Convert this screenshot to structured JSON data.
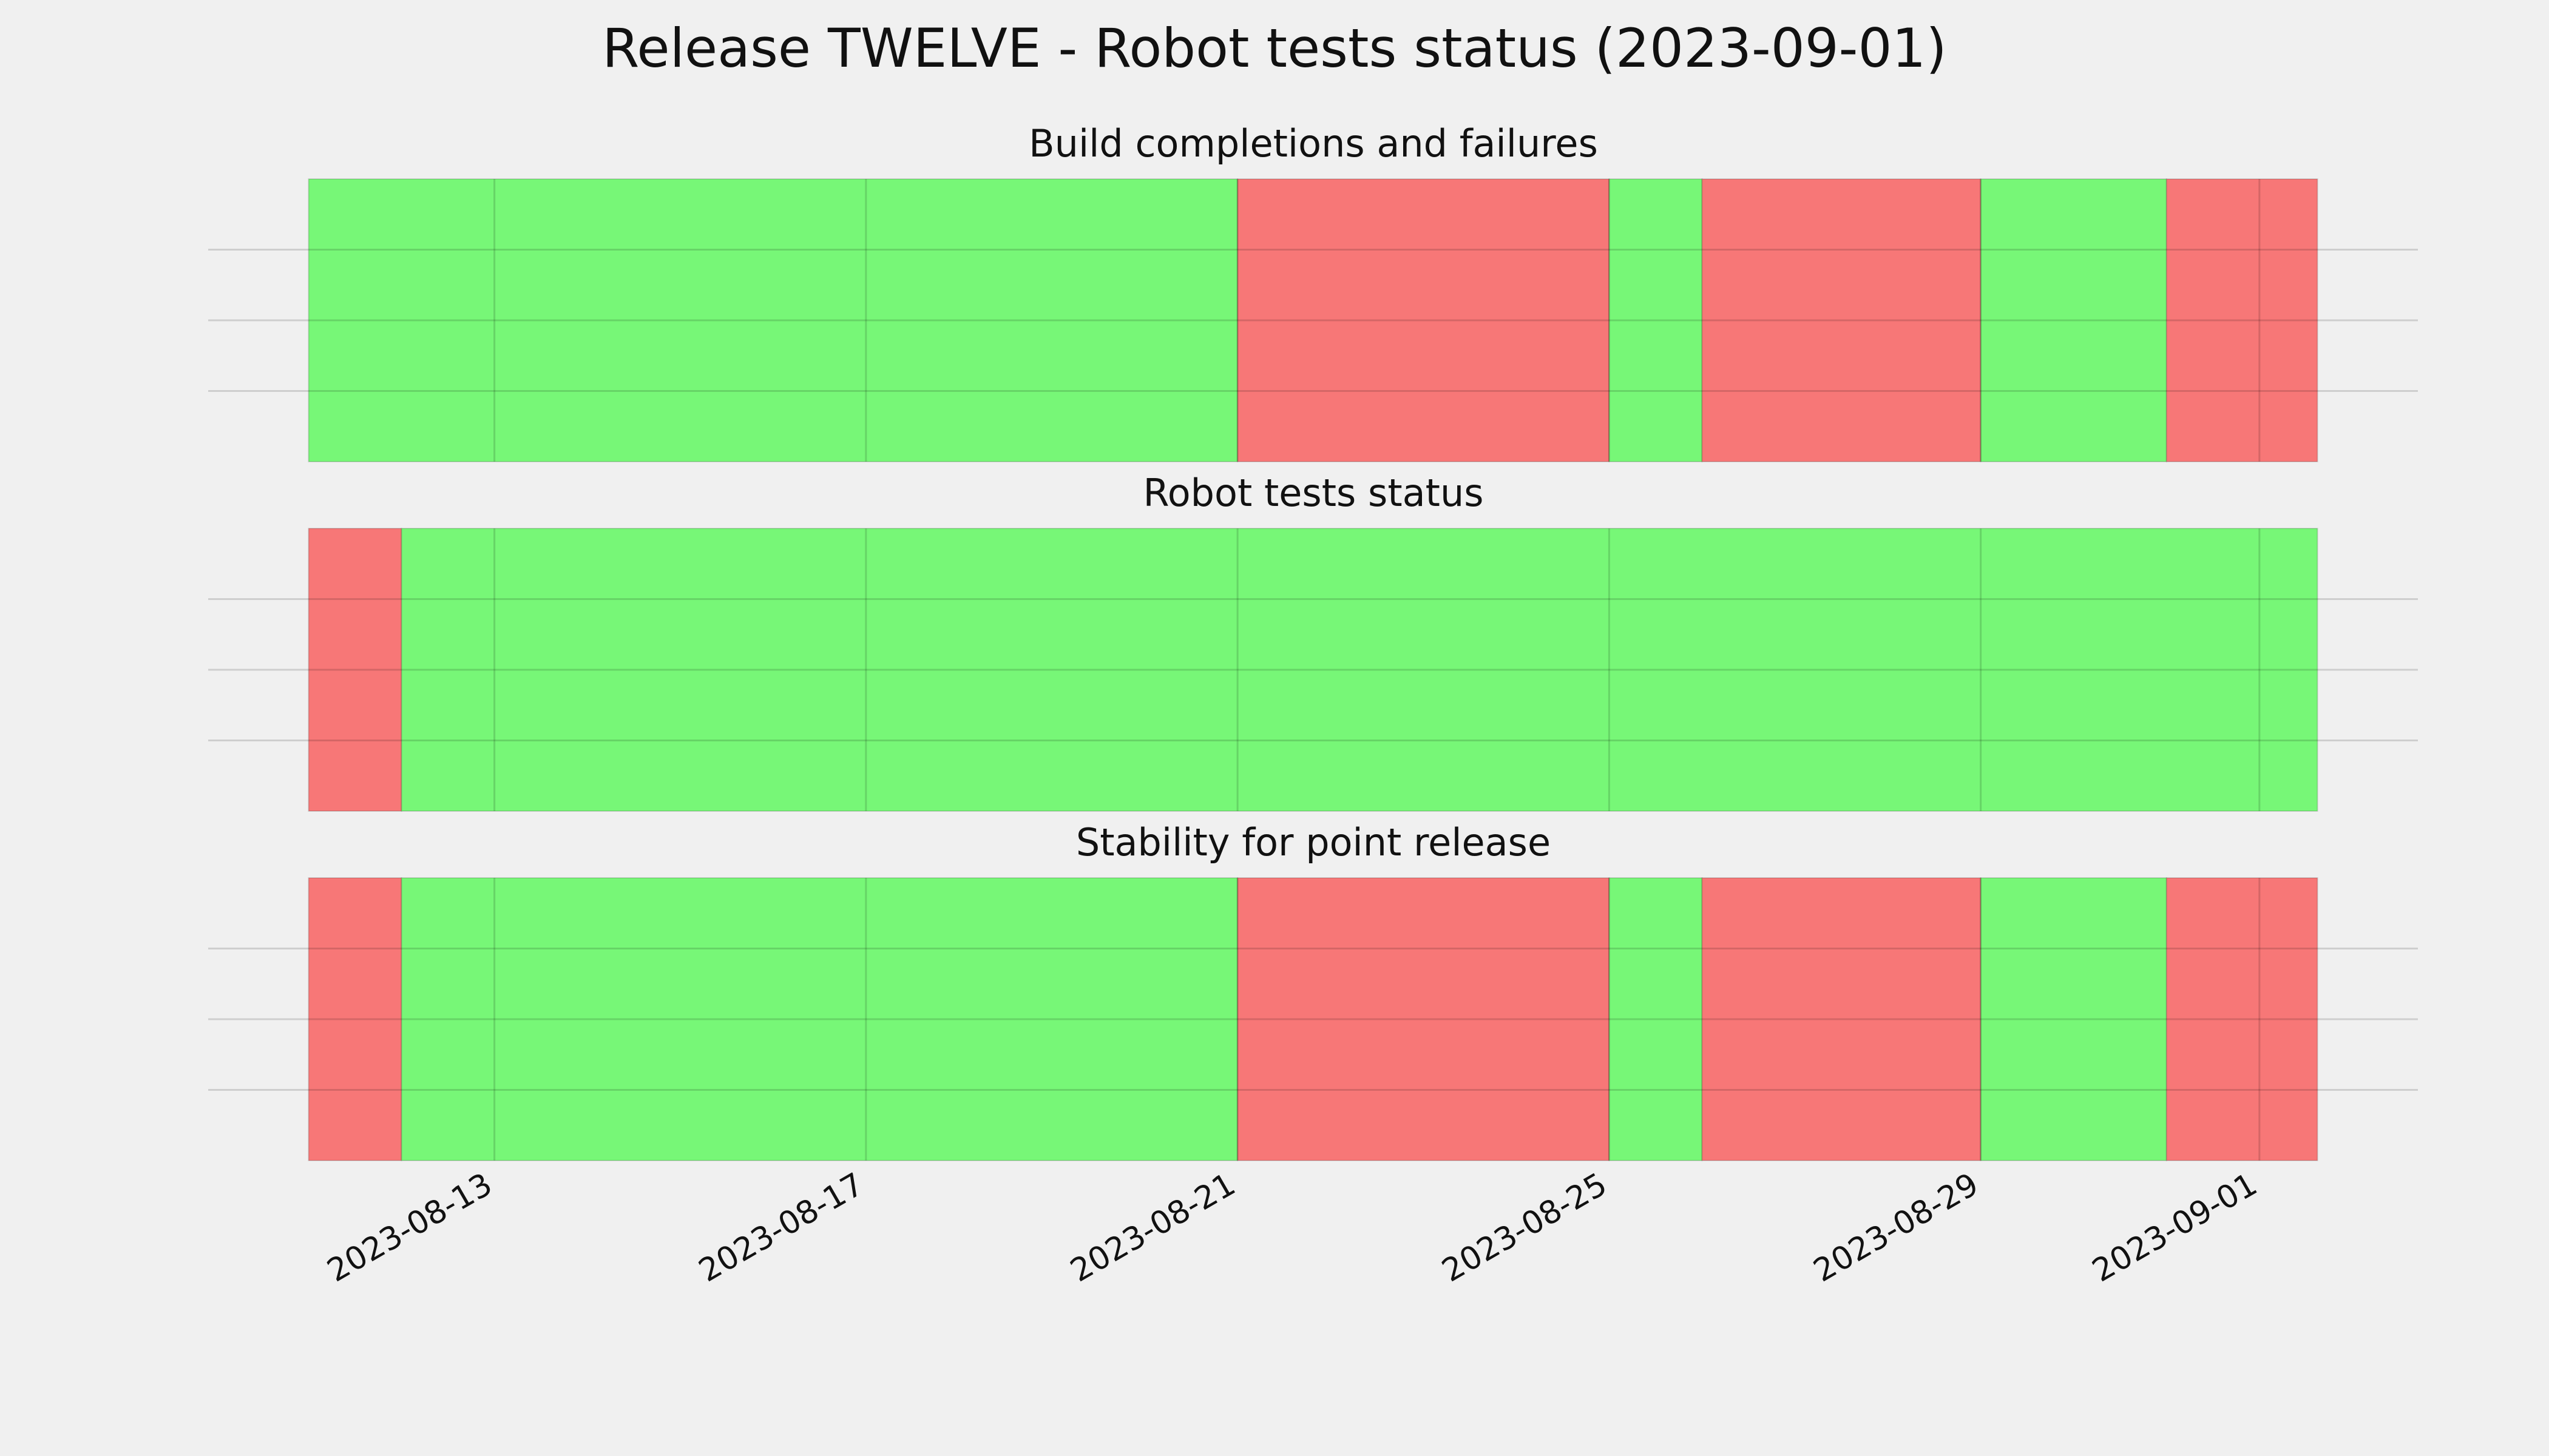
{
  "chart_data": {
    "type": "timeline",
    "title": "Release TWELVE - Robot tests status (2023-09-01)",
    "xticks": [
      "2023-08-13",
      "2023-08-17",
      "2023-08-21",
      "2023-08-25",
      "2023-08-29",
      "2023-09-01"
    ],
    "grid": true,
    "panels": [
      {
        "title": "Build completions and failures",
        "segments": [
          {
            "start": "2023-08-11",
            "end": "2023-08-21",
            "color": "#77f777"
          },
          {
            "start": "2023-08-21",
            "end": "2023-08-25",
            "color": "#f77777"
          },
          {
            "start": "2023-08-25",
            "end": "2023-08-26",
            "color": "#77f777"
          },
          {
            "start": "2023-08-26",
            "end": "2023-08-29",
            "color": "#f77777"
          },
          {
            "start": "2023-08-29",
            "end": "2023-08-31",
            "color": "#77f777"
          },
          {
            "start": "2023-08-31",
            "end": "2023-09-01T15:00",
            "color": "#f77777"
          }
        ]
      },
      {
        "title": "Robot tests status",
        "segments": [
          {
            "start": "2023-08-11",
            "end": "2023-08-12",
            "color": "#f77777"
          },
          {
            "start": "2023-08-12",
            "end": "2023-09-01T15:00",
            "color": "#77f777"
          }
        ]
      },
      {
        "title": "Stability for point release",
        "segments": [
          {
            "start": "2023-08-11",
            "end": "2023-08-12",
            "color": "#f77777"
          },
          {
            "start": "2023-08-12",
            "end": "2023-08-21",
            "color": "#77f777"
          },
          {
            "start": "2023-08-21",
            "end": "2023-08-25",
            "color": "#f77777"
          },
          {
            "start": "2023-08-25",
            "end": "2023-08-26",
            "color": "#77f777"
          },
          {
            "start": "2023-08-26",
            "end": "2023-08-29",
            "color": "#f77777"
          },
          {
            "start": "2023-08-29",
            "end": "2023-08-31",
            "color": "#77f777"
          },
          {
            "start": "2023-08-31",
            "end": "2023-09-01T15:00",
            "color": "#f77777"
          }
        ]
      }
    ]
  }
}
